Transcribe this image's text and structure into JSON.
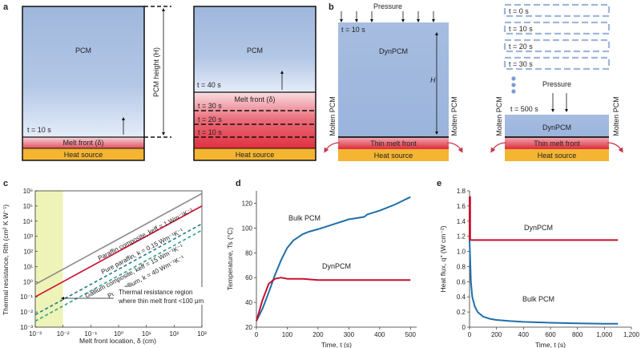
{
  "panel_a": {
    "letter": "a",
    "left": {
      "pcm": "PCM",
      "time": "t = 10 s",
      "melt_front": "Melt front (δ)",
      "heat": "Heat source",
      "height_label": "PCM height (H)"
    },
    "right": {
      "pcm": "PCM",
      "times": [
        "t = 40 s",
        "t = 30 s",
        "t = 20 s",
        "t = 10 s"
      ],
      "melt_front": "Melt front (δ)",
      "heat": "Heat source"
    }
  },
  "panel_b": {
    "letter": "b",
    "left": {
      "pressure": "Pressure",
      "time": "t = 10 s",
      "pcm": "DynPCM",
      "h": "H",
      "molten_left": "Molten PCM",
      "molten_right": "Molten PCM",
      "thin": "Thin melt front",
      "heat": "Heat source"
    },
    "right": {
      "times": [
        "t = 0 s",
        "t = 10 s",
        "t = 20 s",
        "t = 30 s"
      ],
      "pressure": "Pressure",
      "time_final": "t = 500 s",
      "pcm": "DynPCM",
      "molten_left": "Molten PCM",
      "molten_right": "Molten PCM",
      "thin": "Thin melt front",
      "heat": "Heat source"
    }
  },
  "panel_c": {
    "letter": "c",
    "xlabel": "Melt front location, δ (cm)",
    "ylabel": "Thermal resistance, Rth (cm² K W⁻¹)",
    "line_labels": [
      "Pure paraffin, k = 0.15 Wm⁻¹K⁻¹",
      "Paraffin composite, keff = 1 Wm⁻¹K⁻¹",
      "Gallium composite, keff = 15 Wm⁻¹K⁻¹",
      "Pure gallium, k = 40 Wm⁻¹K⁻¹"
    ],
    "region_label_1": "Thermal resistance region",
    "region_label_2": "where thin melt front <100 μm"
  },
  "panel_d": {
    "letter": "d",
    "series_labels": [
      "Bulk PCM",
      "DynPCM"
    ]
  },
  "panel_e": {
    "letter": "e",
    "series_labels": [
      "DynPCM",
      "Bulk PCM"
    ]
  },
  "chart_data": [
    {
      "type": "line",
      "panel": "c",
      "xscale": "log",
      "yscale": "log",
      "xlim": [
        0.001,
        1000
      ],
      "ylim": [
        0.001,
        1000000
      ],
      "xlabel": "Melt front location, δ (cm)",
      "ylabel": "Thermal resistance, Rth (cm² K W⁻¹)",
      "xticks": [
        "10⁻³",
        "10⁻²",
        "10⁻¹",
        "10⁰",
        "10¹",
        "10²",
        "10³"
      ],
      "yticks": [
        "10⁻³",
        "10⁻²",
        "10⁻¹",
        "10⁰",
        "10¹",
        "10²",
        "10³",
        "10⁴",
        "10⁵",
        "10⁶"
      ],
      "series": [
        {
          "name": "Pure paraffin, k = 0.15 Wm⁻¹K⁻¹",
          "k": 0.15,
          "color": "#8a8a8a",
          "dash": false
        },
        {
          "name": "Paraffin composite, keff = 1 Wm⁻¹K⁻¹",
          "k": 1,
          "color": "#c8102e",
          "dash": false
        },
        {
          "name": "Gallium composite, keff = 15 Wm⁻¹K⁻¹",
          "k": 15,
          "color": "#1f7a8c",
          "dash": true
        },
        {
          "name": "Pure gallium, k = 40 Wm⁻¹K⁻¹",
          "k": 40,
          "color": "#2ca58d",
          "dash": true
        }
      ],
      "region": {
        "x": [
          0.001,
          0.01
        ]
      }
    },
    {
      "type": "line",
      "panel": "d",
      "xlim": [
        0,
        520
      ],
      "ylim": [
        20,
        130
      ],
      "xlabel": "Time, t (s)",
      "ylabel": "Temperature, Ts (°C)",
      "xticks": [
        0,
        100,
        200,
        300,
        400,
        500
      ],
      "yticks": [
        20,
        40,
        60,
        80,
        100,
        120
      ],
      "series": [
        {
          "name": "Bulk PCM",
          "color": "#1f6fa8",
          "x": [
            0,
            20,
            40,
            60,
            80,
            100,
            120,
            150,
            170,
            200,
            250,
            300,
            350,
            360,
            400,
            450,
            500
          ],
          "y": [
            25,
            35,
            48,
            62,
            74,
            84,
            90,
            95,
            97,
            99,
            103,
            107,
            109,
            111,
            114,
            119,
            125
          ]
        },
        {
          "name": "DynPCM",
          "color": "#c8102e",
          "x": [
            0,
            20,
            40,
            60,
            80,
            100,
            150,
            200,
            250,
            300,
            350,
            400,
            450,
            500
          ],
          "y": [
            25,
            42,
            55,
            59,
            60,
            59,
            59,
            58,
            58,
            58,
            58,
            58,
            58,
            58
          ]
        }
      ]
    },
    {
      "type": "line",
      "panel": "e",
      "xlim": [
        0,
        1200
      ],
      "ylim": [
        0,
        1.8
      ],
      "xlabel": "Time, t (s)",
      "ylabel": "Heat flux, q″ (W cm⁻²)",
      "xticks": [
        "0",
        "200",
        "400",
        "600",
        "800",
        "1,000",
        "1,200"
      ],
      "xtick_values": [
        0,
        200,
        400,
        600,
        800,
        1000,
        1200
      ],
      "yticks": [
        "0",
        "0.2",
        "0.4",
        "0.6",
        "0.8",
        "1.0",
        "1.2",
        "1.4",
        "1.6",
        "1.8"
      ],
      "ytick_values": [
        0,
        0.2,
        0.4,
        0.6,
        0.8,
        1.0,
        1.2,
        1.4,
        1.6,
        1.8
      ],
      "series": [
        {
          "name": "DynPCM",
          "color": "#c8102e",
          "x": [
            0,
            0,
            5,
            5,
            1100
          ],
          "y": [
            1.15,
            1.72,
            1.72,
            1.15,
            1.15
          ]
        },
        {
          "name": "Bulk PCM",
          "color": "#1f6fa8",
          "x": [
            0,
            5,
            10,
            20,
            40,
            60,
            100,
            150,
            200,
            300,
            400,
            600,
            800,
            1000,
            1100
          ],
          "y": [
            1.15,
            0.9,
            0.6,
            0.4,
            0.27,
            0.2,
            0.14,
            0.11,
            0.095,
            0.08,
            0.07,
            0.058,
            0.05,
            0.045,
            0.045
          ]
        }
      ]
    }
  ]
}
